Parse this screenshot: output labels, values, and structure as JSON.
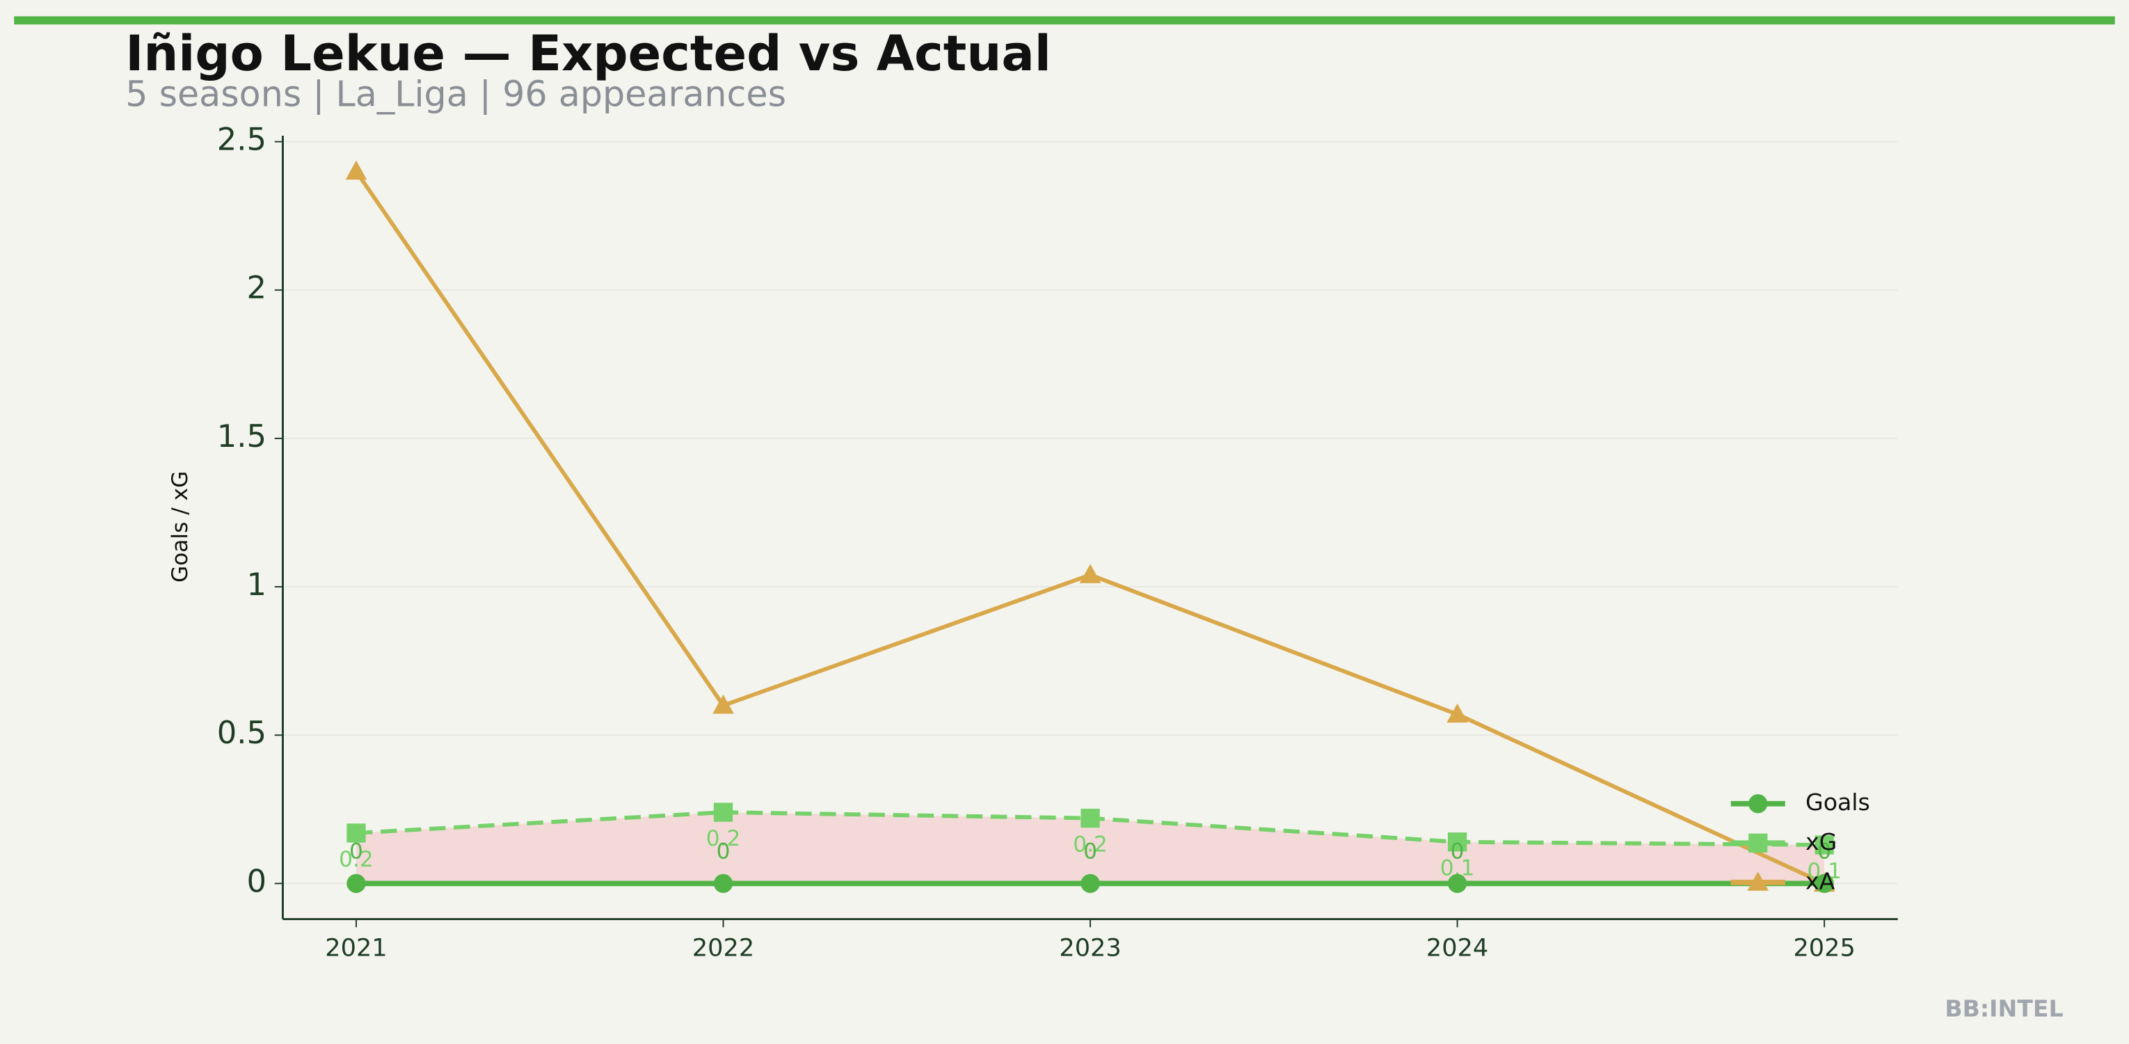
{
  "chart_data": {
    "type": "line",
    "title": "Iñigo Lekue — Expected vs Actual",
    "subtitle": "5 seasons | La_Liga | 96 appearances",
    "y_label": "Goals / xG",
    "watermark": "BB:INTEL",
    "x": [
      2021,
      2022,
      2023,
      2024,
      2025
    ],
    "series": [
      {
        "name": "Goals",
        "color": "#52b447",
        "values": [
          0,
          0,
          0,
          0,
          0
        ],
        "value_labels": [
          "0",
          "0",
          "0",
          "0",
          "0"
        ],
        "marker": "circle",
        "dash": false
      },
      {
        "name": "xG",
        "color": "#77d16a",
        "values": [
          0.17,
          0.24,
          0.22,
          0.14,
          0.13
        ],
        "value_labels": [
          "0.2",
          "0.2",
          "0.2",
          "0.1",
          "0.1"
        ],
        "marker": "square",
        "dash": true
      },
      {
        "name": "xA",
        "color": "#d9a84a",
        "values": [
          2.4,
          0.6,
          1.04,
          0.57,
          0.0
        ],
        "marker": "triangle",
        "dash": false
      }
    ],
    "fill_between": {
      "color": "#f2c4c4"
    },
    "xlim": [
      2020.8,
      2025.2
    ],
    "xticks": [
      2021,
      2022,
      2023,
      2024,
      2025
    ],
    "ylim": [
      -0.12,
      2.52
    ],
    "yticks": [
      0.0,
      0.5,
      1.0,
      1.5,
      2.0,
      2.5
    ],
    "grid": true,
    "legend": "lower right"
  }
}
